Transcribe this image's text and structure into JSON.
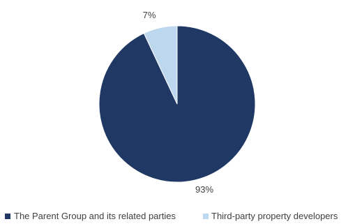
{
  "chart_data": {
    "type": "pie",
    "title": "",
    "categories": [
      "The Parent Group and its related parties",
      "Third-party property developers"
    ],
    "values": [
      93,
      7
    ],
    "data_labels": [
      "93%",
      "7%"
    ],
    "colors": [
      "#1f3864",
      "#bdd7ee"
    ],
    "start_angle_deg": 0,
    "direction": "clockwise",
    "legend": {
      "placement": "bottom",
      "entries": [
        "The Parent Group and its related parties",
        "Third-party property developers"
      ]
    }
  }
}
